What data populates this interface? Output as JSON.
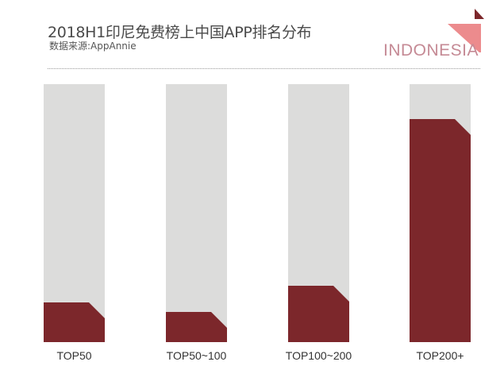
{
  "header": {
    "title": "2018H1印尼免费榜上中国APP排名分布",
    "subtitle": "数据来源:AppAnnie",
    "brand": "INDONESIA"
  },
  "colors": {
    "bar_background": "#dcdcdb",
    "bar_fill": "#7c272b",
    "brand_text": "#c58a95",
    "triangle_dark": "#7c272b",
    "triangle_light": "#ec8b8d"
  },
  "chart_data": {
    "type": "bar",
    "title": "2018H1印尼免费榜上中国APP排名分布",
    "subtitle": "数据来源:AppAnnie",
    "categories": [
      "TOP50",
      "TOP50~100",
      "TOP100~200",
      "TOP200+"
    ],
    "values": [
      15.4,
      11.7,
      21.8,
      86.5
    ],
    "unit": "% of bar height (relative share, no axis shown)",
    "xlabel": "",
    "ylabel": "",
    "ylim": [
      0,
      100
    ],
    "grid": false,
    "legend": "none"
  },
  "bars": [
    {
      "label": "TOP50",
      "pct": 15.4
    },
    {
      "label": "TOP50~100",
      "pct": 11.7
    },
    {
      "label": "TOP100~200",
      "pct": 21.8
    },
    {
      "label": "TOP200+",
      "pct": 86.5
    }
  ]
}
